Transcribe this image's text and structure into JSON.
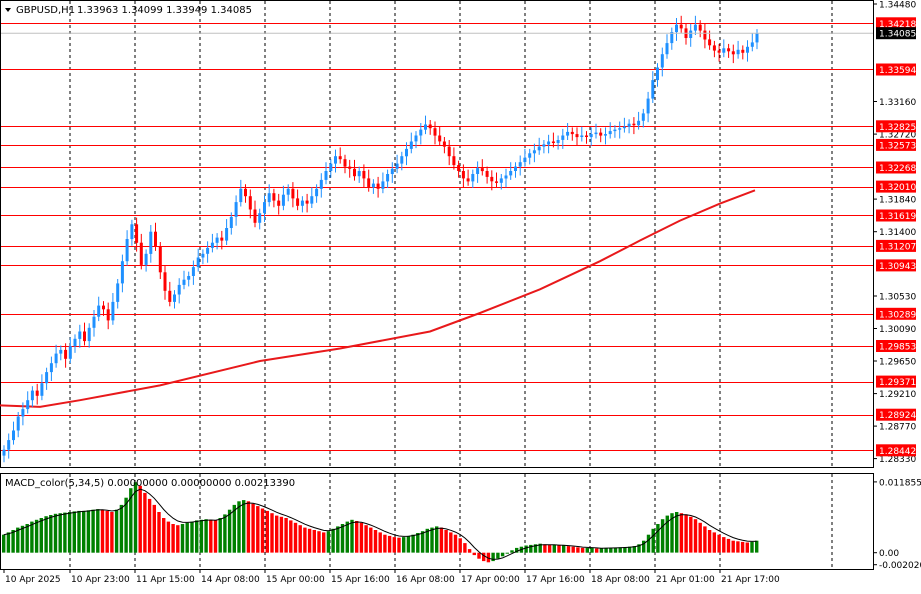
{
  "window": {
    "symbol_label": "GBPUSD,H1",
    "ohlc": "1.33963 1.34099 1.33949 1.34085",
    "menu_icon": "triangle-down-icon"
  },
  "price_axis": {
    "ticks": [
      "1.34480",
      "1.33160",
      "1.32720",
      "1.31840",
      "1.31400",
      "1.30530",
      "1.30090",
      "1.29650",
      "1.29210",
      "1.28770",
      "1.28330"
    ],
    "current_price": "1.34085",
    "range": [
      1.2823,
      1.3452
    ]
  },
  "levels": [
    "1.34218",
    "1.33594",
    "1.32825",
    "1.32573",
    "1.32268",
    "1.32010",
    "1.31619",
    "1.31207",
    "1.30943",
    "1.30289",
    "1.29853",
    "1.29371",
    "1.28924",
    "1.28442"
  ],
  "macd": {
    "title": "MACD_color(5,34,5) 0.00000000 0.00000000 0.00213390",
    "ticks": [
      "0.0118552",
      "0.00",
      "-0.0020203"
    ],
    "range": [
      -0.0024,
      0.0125
    ]
  },
  "time_axis": [
    "10 Apr 2025",
    "10 Apr 23:00",
    "11 Apr 15:00",
    "14 Apr 08:00",
    "15 Apr 00:00",
    "15 Apr 16:00",
    "16 Apr 08:00",
    "17 Apr 00:00",
    "17 Apr 16:00",
    "18 Apr 08:00",
    "21 Apr 01:00",
    "21 Apr 17:00"
  ],
  "chart_data": {
    "type": "candlestick",
    "closes": [
      1.2845,
      1.2858,
      1.2871,
      1.289,
      1.29,
      1.2912,
      1.2925,
      1.2918,
      1.2935,
      1.295,
      1.2962,
      1.2975,
      1.298,
      1.2968,
      1.2985,
      1.2995,
      1.3005,
      1.2992,
      1.301,
      1.3025,
      1.304,
      1.3035,
      1.302,
      1.3045,
      1.307,
      1.31,
      1.313,
      1.315,
      1.3125,
      1.3095,
      1.311,
      1.314,
      1.312,
      1.3085,
      1.306,
      1.3045,
      1.3055,
      1.3068,
      1.3075,
      1.308,
      1.3092,
      1.3105,
      1.311,
      1.3118,
      1.3125,
      1.3132,
      1.3128,
      1.3145,
      1.316,
      1.318,
      1.3198,
      1.3188,
      1.317,
      1.3152,
      1.3165,
      1.318,
      1.3192,
      1.3182,
      1.3175,
      1.319,
      1.3198,
      1.3185,
      1.3175,
      1.3182,
      1.3178,
      1.3188,
      1.3198,
      1.321,
      1.3222,
      1.3232,
      1.3242,
      1.3238,
      1.3228,
      1.3225,
      1.3215,
      1.3222,
      1.3212,
      1.32,
      1.3205,
      1.3198,
      1.3208,
      1.3218,
      1.3225,
      1.3232,
      1.3242,
      1.3252,
      1.3262,
      1.327,
      1.3278,
      1.3285,
      1.328,
      1.327,
      1.3262,
      1.3255,
      1.3242,
      1.323,
      1.3222,
      1.3212,
      1.3208,
      1.3218,
      1.3226,
      1.3222,
      1.3214,
      1.3208,
      1.3206,
      1.3212,
      1.3216,
      1.3222,
      1.3228,
      1.3234,
      1.324,
      1.3246,
      1.325,
      1.3255,
      1.3258,
      1.3262,
      1.326,
      1.3264,
      1.327,
      1.3275,
      1.3272,
      1.3268,
      1.327,
      1.3268,
      1.3272,
      1.3274,
      1.327,
      1.3272,
      1.3276,
      1.3278,
      1.328,
      1.3282,
      1.3286,
      1.3284,
      1.329,
      1.33,
      1.332,
      1.3345,
      1.3362,
      1.338,
      1.3395,
      1.341,
      1.342,
      1.3415,
      1.3402,
      1.3412,
      1.342,
      1.3412,
      1.34,
      1.3392,
      1.3385,
      1.3382,
      1.3388,
      1.3384,
      1.338,
      1.3386,
      1.3382,
      1.339,
      1.3396,
      1.3408
    ],
    "ma": [
      [
        0,
        1.2905
      ],
      [
        40,
        1.2903
      ],
      [
        80,
        1.2912
      ],
      [
        160,
        1.2932
      ],
      [
        260,
        1.2965
      ],
      [
        340,
        1.2982
      ],
      [
        430,
        1.3005
      ],
      [
        480,
        1.303
      ],
      [
        540,
        1.3062
      ],
      [
        600,
        1.31
      ],
      [
        640,
        1.3128
      ],
      [
        680,
        1.3155
      ],
      [
        720,
        1.3178
      ],
      [
        755,
        1.3196
      ]
    ],
    "macd_values": [
      0.003,
      0.0034,
      0.0038,
      0.0042,
      0.0045,
      0.0048,
      0.0052,
      0.0055,
      0.0058,
      0.0061,
      0.0063,
      0.0065,
      0.0066,
      0.0067,
      0.0068,
      0.0069,
      0.007,
      0.007,
      0.0071,
      0.0072,
      0.0073,
      0.0072,
      0.007,
      0.0068,
      0.0072,
      0.008,
      0.0092,
      0.0108,
      0.0118,
      0.0112,
      0.01,
      0.009,
      0.008,
      0.0068,
      0.0058,
      0.0052,
      0.0048,
      0.0046,
      0.0048,
      0.005,
      0.0052,
      0.0054,
      0.0055,
      0.0056,
      0.0055,
      0.0054,
      0.0058,
      0.0064,
      0.0072,
      0.008,
      0.0086,
      0.0088,
      0.0086,
      0.0082,
      0.0078,
      0.0074,
      0.007,
      0.0066,
      0.0062,
      0.006,
      0.0058,
      0.0054,
      0.005,
      0.0046,
      0.0042,
      0.004,
      0.0038,
      0.0036,
      0.0034,
      0.0036,
      0.004,
      0.0044,
      0.0048,
      0.0052,
      0.0055,
      0.0053,
      0.005,
      0.0046,
      0.0042,
      0.0038,
      0.0034,
      0.003,
      0.0028,
      0.0026,
      0.0025,
      0.0026,
      0.0028,
      0.003,
      0.0033,
      0.0036,
      0.004,
      0.0042,
      0.0044,
      0.0042,
      0.0038,
      0.0034,
      0.003,
      0.0024,
      0.0016,
      0.0006,
      -0.0004,
      -0.001,
      -0.0014,
      -0.0016,
      -0.0014,
      -0.001,
      -0.0006,
      0.0,
      0.0004,
      0.0008,
      0.001,
      0.0012,
      0.0013,
      0.0014,
      0.0015,
      0.0014,
      0.0013,
      0.0013,
      0.0012,
      0.0012,
      0.0011,
      0.001,
      0.0009,
      0.0008,
      0.0008,
      0.0008,
      0.0007,
      0.0007,
      0.0008,
      0.0008,
      0.0008,
      0.0009,
      0.0009,
      0.001,
      0.0011,
      0.0014,
      0.002,
      0.003,
      0.004,
      0.0048,
      0.0056,
      0.0062,
      0.0066,
      0.0068,
      0.0066,
      0.0064,
      0.006,
      0.0056,
      0.005,
      0.0044,
      0.0038,
      0.0034,
      0.003,
      0.0026,
      0.0023,
      0.002,
      0.0019,
      0.0018,
      0.0017,
      0.0018,
      0.002
    ]
  },
  "colors": {
    "bull": "#1e90ff",
    "bear": "#ff0000",
    "level_line": "#ff0000",
    "ma_line": "#e8191b",
    "macd_up": "#008000",
    "macd_down": "#ff0000",
    "signal": "#000000",
    "price_label_bg": "#ff0000",
    "current_bg": "#000000"
  }
}
